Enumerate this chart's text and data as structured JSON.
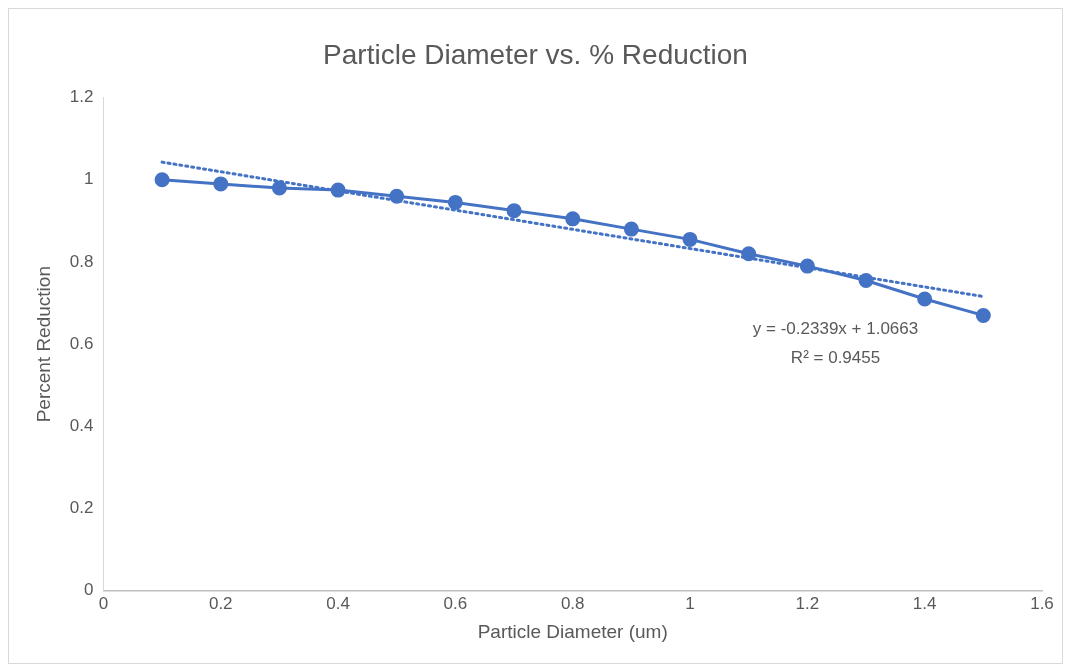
{
  "chart_data": {
    "type": "line",
    "title": "Particle Diameter vs. % Reduction",
    "xlabel": "Particle Diameter (um)",
    "ylabel": "Percent Reduction",
    "x": [
      0.1,
      0.2,
      0.3,
      0.4,
      0.5,
      0.6,
      0.7,
      0.8,
      0.9,
      1.0,
      1.1,
      1.2,
      1.3,
      1.4,
      1.5
    ],
    "series": [
      {
        "color": "#4472c4",
        "values": [
          1.0,
          0.99,
          0.98,
          0.975,
          0.96,
          0.945,
          0.925,
          0.905,
          0.88,
          0.855,
          0.82,
          0.79,
          0.755,
          0.71,
          0.67
        ],
        "marker": "circle",
        "line_style": "solid"
      },
      {
        "type": "line",
        "color": "#4472c4",
        "x": [
          0.1,
          1.5
        ],
        "values": [
          1.043,
          0.716
        ],
        "marker": "none",
        "line_style": "dotted"
      }
    ],
    "annotations": [
      "y = -0.2339x + 1.0663",
      "R² = 0.9455"
    ],
    "xlim": [
      0,
      1.6
    ],
    "xticks": [
      0,
      0.2,
      0.4,
      0.6,
      0.8,
      1,
      1.2,
      1.4,
      1.6
    ],
    "ylim": [
      0,
      1.2
    ],
    "yticks": [
      0,
      0.2,
      0.4,
      0.6,
      0.8,
      1,
      1.2
    ],
    "grid": false,
    "legend": false
  }
}
